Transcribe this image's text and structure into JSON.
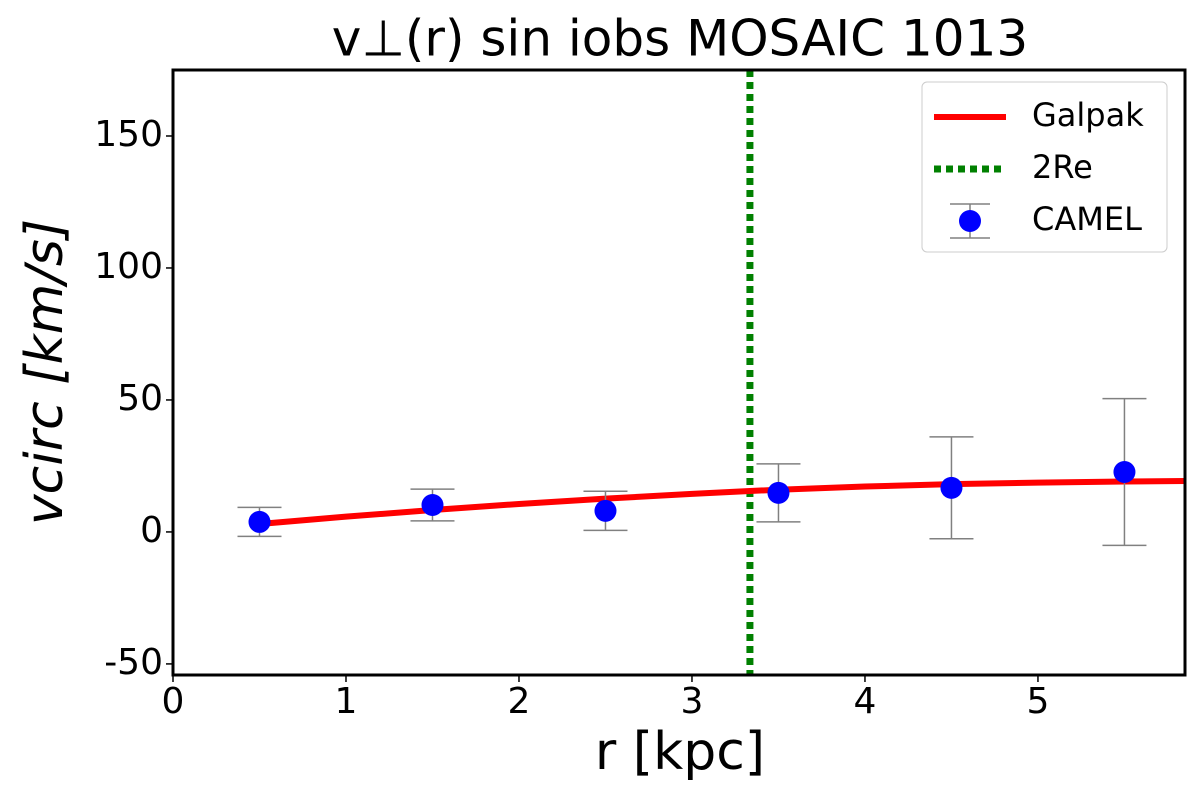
{
  "chart_data": {
    "type": "line",
    "title": "v⊥(r) sin iobs MOSAIC 1013",
    "x_label": "r [kpc]",
    "y_label": "vcirc [km/s]",
    "xlim": [
      0,
      5.85
    ],
    "ylim": [
      -54.2,
      175
    ],
    "xticks": [
      0,
      1,
      2,
      3,
      4,
      5
    ],
    "yticks": [
      -50,
      0,
      50,
      100,
      150
    ],
    "legend": "upper right",
    "series": [
      {
        "name": "Galpak",
        "color": "#ff0000",
        "style": "solid",
        "x": [
          0.5,
          1,
          1.5,
          2,
          2.5,
          3,
          3.335,
          3.5,
          4,
          4.5,
          5,
          5.5,
          5.85
        ],
        "values": [
          3,
          5.8,
          8.3,
          10.6,
          12.6,
          14.4,
          15.5,
          16,
          17.2,
          18.1,
          18.7,
          19.1,
          19.3
        ]
      },
      {
        "name": "CAMEL",
        "color": "#0000ff",
        "style": "errorbar",
        "error_color": "#808080",
        "x": [
          0.5,
          1.5,
          2.5,
          3.5,
          4.5,
          5.5
        ],
        "values": [
          3.8,
          10.2,
          8,
          14.8,
          16.7,
          22.7
        ],
        "errors": [
          5.5,
          6,
          7.4,
          11,
          19.3,
          27.8
        ]
      }
    ],
    "vline": {
      "name": "2Re",
      "x": 3.335,
      "color": "#008000"
    }
  }
}
